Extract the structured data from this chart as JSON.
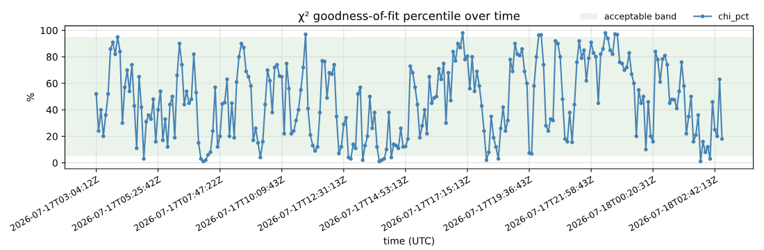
{
  "chart_data": {
    "type": "line",
    "title": "χ² goodness-of-fit percentile over time",
    "xlabel": "time (UTC)",
    "ylabel": "%",
    "categories": [
      "2026-07-17T03:04:12Z",
      null,
      null,
      null,
      null,
      null,
      null,
      null,
      null,
      null,
      null,
      null,
      null,
      null,
      null,
      null,
      null,
      null,
      null,
      null,
      null,
      null,
      null,
      null,
      null,
      null,
      "2026-07-17T05:25:42Z",
      null,
      null,
      null,
      null,
      null,
      null,
      null,
      null,
      null,
      null,
      null,
      null,
      null,
      null,
      null,
      null,
      null,
      null,
      null,
      null,
      null,
      null,
      null,
      null,
      null,
      "2026-07-17T07:47:22Z",
      null,
      null,
      null,
      null,
      null,
      null,
      null,
      null,
      null,
      null,
      null,
      null,
      null,
      null,
      null,
      null,
      null,
      null,
      null,
      null,
      null,
      null,
      null,
      null,
      null,
      "2026-07-17T10:09:43Z",
      null,
      null,
      null,
      null,
      null,
      null,
      null,
      null,
      null,
      null,
      null,
      null,
      null,
      null,
      null,
      null,
      null,
      null,
      null,
      null,
      null,
      null,
      null,
      null,
      null,
      "2026-07-17T12:31:13Z",
      null,
      null,
      null,
      null,
      null,
      null,
      null,
      null,
      null,
      null,
      null,
      null,
      null,
      null,
      null,
      null,
      null,
      null,
      null,
      null,
      null,
      null,
      null,
      null,
      null,
      "2026-07-17T14:53:13Z",
      null,
      null,
      null,
      null,
      null,
      null,
      null,
      null,
      null,
      null,
      null,
      null,
      null,
      null,
      null,
      null,
      null,
      null,
      null,
      null,
      null,
      null,
      null,
      null,
      null,
      "2026-07-17T17:15:13Z",
      null,
      null,
      null,
      null,
      null,
      null,
      null,
      null,
      null,
      null,
      null,
      null,
      null,
      null,
      null,
      null,
      null,
      null,
      null,
      null,
      null,
      null,
      null,
      null,
      null,
      "2026-07-17T19:36:43Z",
      null,
      null,
      null,
      null,
      null,
      null,
      null,
      null,
      null,
      null,
      null,
      null,
      null,
      null,
      null,
      null,
      null,
      null,
      null,
      null,
      null,
      null,
      null,
      null,
      null,
      "2026-07-17T21:58:43Z",
      null,
      null,
      null,
      null,
      null,
      null,
      null,
      null,
      null,
      null,
      null,
      null,
      null,
      null,
      null,
      null,
      null,
      null,
      null,
      null,
      null,
      null,
      null,
      null,
      null,
      "2026-07-18T00:20:31Z",
      null,
      null,
      null,
      null,
      null,
      null,
      null,
      null,
      null,
      null,
      null,
      null,
      null,
      null,
      null,
      null,
      null,
      null,
      null,
      null,
      null,
      null,
      null,
      null,
      null,
      "2026-07-18T02:42:13Z",
      null,
      null,
      null
    ],
    "series": [
      {
        "name": "chi_pct",
        "color": "#4682b4",
        "values": [
          52,
          24,
          40,
          20,
          36,
          52,
          86,
          91,
          82,
          95,
          84,
          30,
          57,
          70,
          54,
          74,
          43,
          11,
          65,
          42,
          3,
          31,
          36,
          33,
          48,
          16,
          40,
          54,
          17,
          33,
          12,
          44,
          50,
          19,
          66,
          90,
          74,
          44,
          54,
          45,
          48,
          82,
          53,
          15,
          3,
          1,
          2,
          6,
          8,
          24,
          57,
          12,
          20,
          44.5,
          45.5,
          63,
          20,
          45,
          19,
          61,
          80,
          90,
          87,
          69,
          65,
          58,
          17,
          26,
          15,
          4,
          16,
          44,
          70,
          62,
          38,
          72,
          74,
          65.5,
          65,
          22,
          75,
          56,
          22,
          24,
          32,
          40,
          55,
          72,
          97,
          41,
          21,
          13,
          9,
          12,
          38,
          77,
          76.5,
          49,
          68,
          67,
          74,
          35,
          7,
          12,
          29,
          34,
          4,
          3,
          14,
          11,
          52,
          57,
          2,
          13,
          20,
          50,
          26,
          38,
          12,
          1,
          2,
          3,
          10,
          38,
          4,
          14,
          13,
          11,
          26,
          12,
          12.4,
          18,
          73,
          68,
          57,
          44,
          19,
          28,
          40,
          22,
          65,
          45,
          49,
          50,
          71,
          63,
          75,
          30,
          68,
          47,
          84,
          77,
          90,
          87,
          98,
          78,
          80.5,
          56,
          80,
          54,
          69,
          58,
          43,
          24,
          2,
          8,
          35,
          19,
          12,
          3,
          26,
          42,
          24,
          32,
          78,
          69,
          90,
          82,
          81,
          86,
          69,
          60,
          7.4,
          6.8,
          58,
          80,
          96.3,
          96.6,
          74,
          28,
          24,
          33,
          32,
          92,
          90,
          80,
          48,
          18,
          16,
          38,
          15.5,
          44,
          76,
          92,
          79,
          85,
          62,
          79,
          91,
          83,
          80,
          45,
          82,
          86,
          98,
          94,
          85,
          82,
          97.2,
          96.8,
          76,
          75,
          70,
          72,
          83,
          67,
          60,
          20,
          55,
          45,
          50,
          10,
          46,
          20,
          16,
          84,
          77.9,
          61,
          78.3,
          81,
          74,
          45,
          47.9,
          47.5,
          41,
          54,
          76,
          58,
          22,
          35,
          50,
          16,
          21,
          36,
          1,
          16,
          8,
          12,
          3,
          46,
          25,
          20,
          63,
          18
        ]
      }
    ],
    "bands": [
      {
        "axis": "y",
        "from": 5,
        "to": 95,
        "label": "acceptable band",
        "color": "#eaf4ea"
      }
    ],
    "ylim": [
      -4.5,
      103.5
    ],
    "yticks": [
      0,
      20,
      40,
      60,
      80,
      100
    ],
    "grid": true,
    "legend": "top right",
    "marker": "circle",
    "line_style": "solid"
  }
}
